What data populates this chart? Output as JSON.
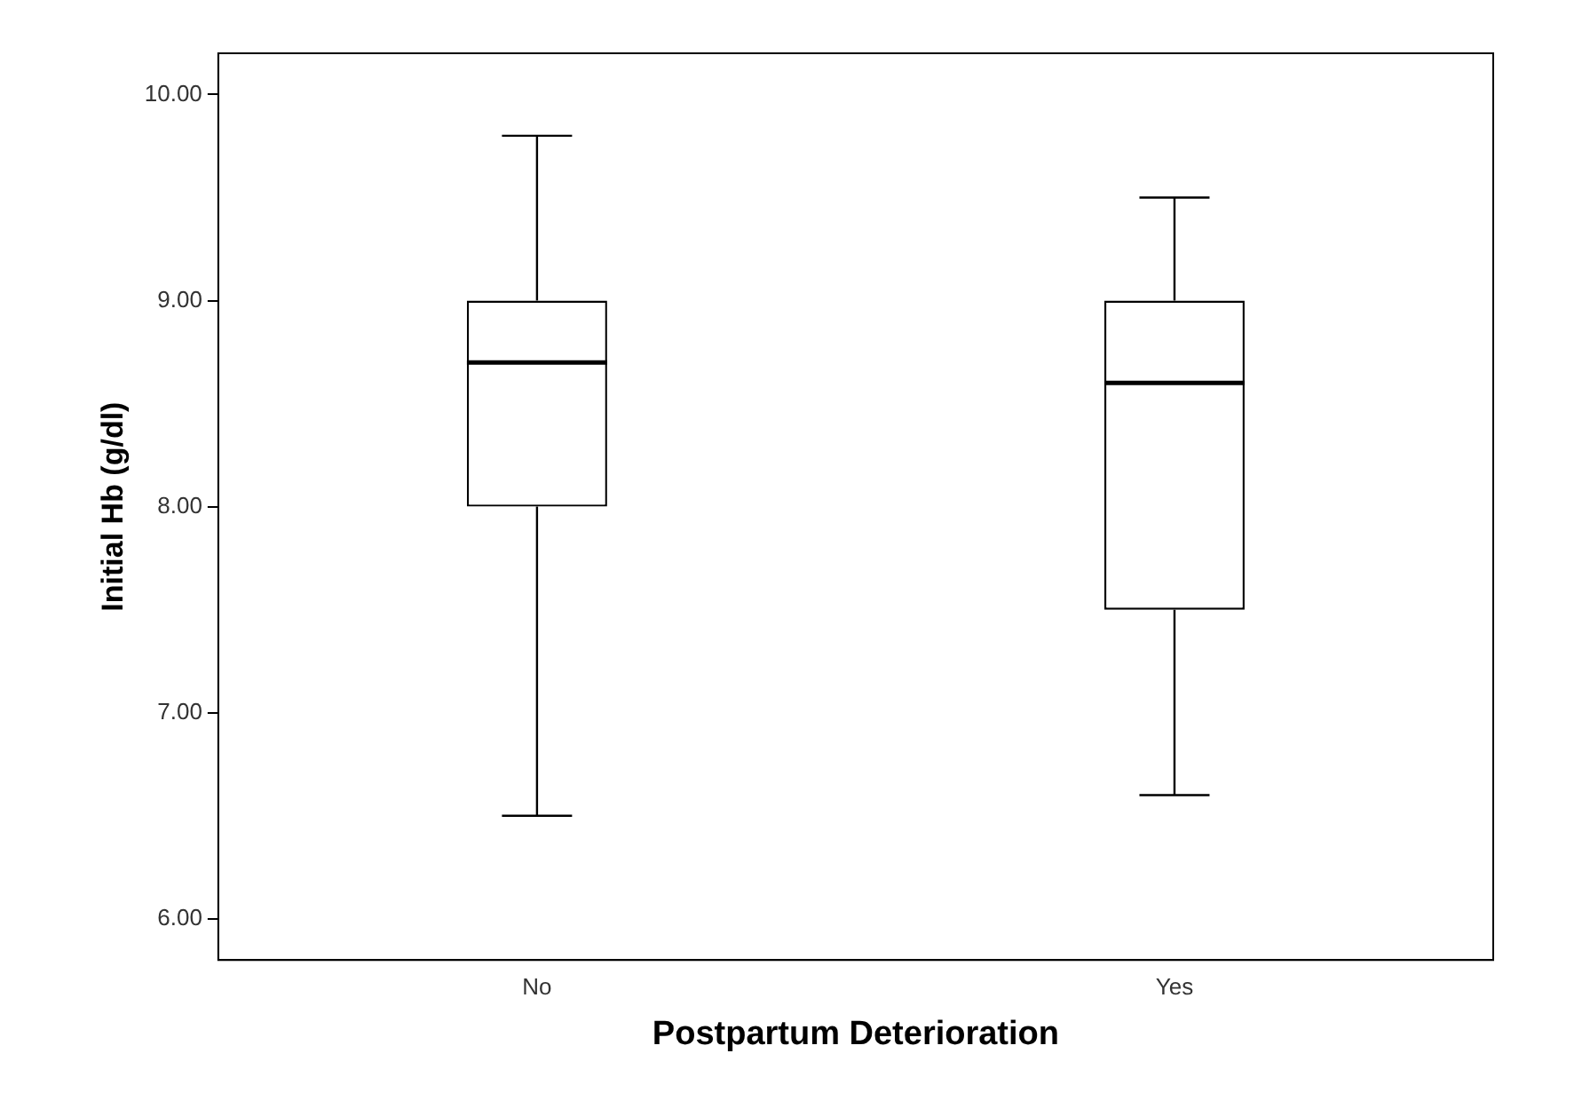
{
  "chart_data": {
    "type": "box",
    "xlabel": "Postpartum Deterioration",
    "ylabel": "Initial Hb (g/dl)",
    "categories": [
      "No",
      "Yes"
    ],
    "boxes": [
      {
        "low": 6.5,
        "q1": 8.0,
        "median": 8.7,
        "q3": 9.0,
        "high": 9.8
      },
      {
        "low": 6.6,
        "q1": 7.5,
        "median": 8.6,
        "q3": 9.0,
        "high": 9.5
      }
    ],
    "ylim": [
      5.8,
      10.2
    ],
    "yticks": [
      {
        "value": 6,
        "label": "6.00"
      },
      {
        "value": 7,
        "label": "7.00"
      },
      {
        "value": 8,
        "label": "8.00"
      },
      {
        "value": 9,
        "label": "9.00"
      },
      {
        "value": 10,
        "label": "10.00"
      }
    ],
    "grid": false,
    "legend": false
  }
}
